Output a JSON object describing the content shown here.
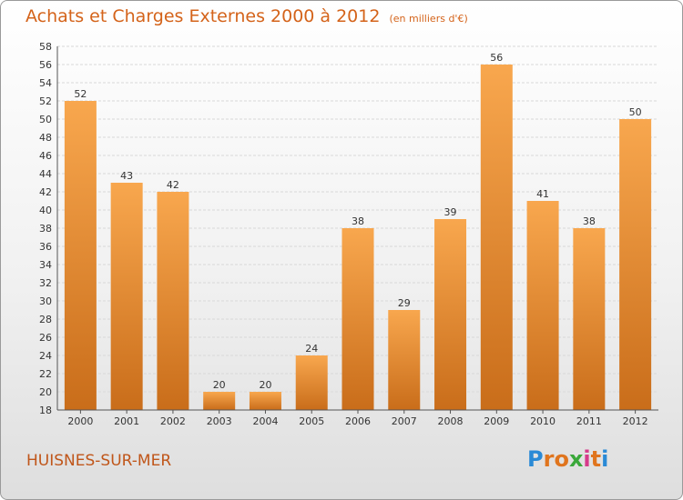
{
  "header": {
    "title": "Achats et Charges Externes 2000 à 2012",
    "unit": "(en milliers d'€)"
  },
  "footer": {
    "commune": "HUISNES-SUR-MER",
    "logo_letters": [
      "P",
      "r",
      "o",
      "x",
      "i",
      "t",
      "i"
    ],
    "logo_colors": [
      "#2a8ad6",
      "#e0751e",
      "#e0751e",
      "#3aa83a",
      "#d63a8a",
      "#e0751e",
      "#2a8ad6"
    ]
  },
  "colors": {
    "bar_top": "#f8a74e",
    "bar_bottom": "#c96d1a",
    "title": "#d4631a"
  },
  "chart_data": {
    "type": "bar",
    "categories": [
      "2000",
      "2001",
      "2002",
      "2003",
      "2004",
      "2005",
      "2006",
      "2007",
      "2008",
      "2009",
      "2010",
      "2011",
      "2012"
    ],
    "values": [
      52,
      43,
      42,
      20,
      20,
      24,
      38,
      29,
      39,
      56,
      41,
      38,
      50
    ],
    "title": "Achats et Charges Externes 2000 à 2012",
    "ylim": [
      18,
      58
    ],
    "yticks": [
      18,
      20,
      22,
      24,
      26,
      28,
      30,
      32,
      34,
      36,
      38,
      40,
      42,
      44,
      46,
      48,
      50,
      52,
      54,
      56,
      58
    ],
    "grid": true
  }
}
